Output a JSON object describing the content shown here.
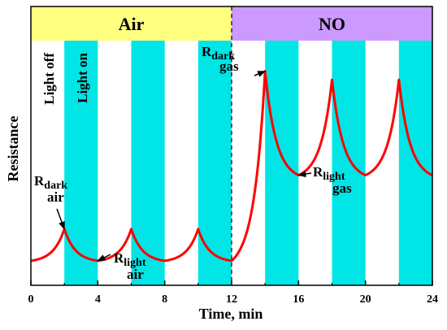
{
  "chart_data": {
    "type": "line",
    "title": "",
    "xlabel": "Time, min",
    "ylabel": "Resistance",
    "xlim": [
      0,
      24
    ],
    "ylim": [
      0,
      1
    ],
    "x_ticks": [
      0,
      4,
      8,
      12,
      16,
      20,
      24
    ],
    "x_tick_labels": [
      "0",
      "4",
      "8",
      "12",
      "16",
      "20",
      "24"
    ],
    "y_ticks_shown": false,
    "grid": false,
    "legend": null,
    "regions": [
      {
        "label": "Air",
        "x_start": 0,
        "x_end": 12,
        "color": "#ffff80"
      },
      {
        "label": "NO",
        "x_start": 12,
        "x_end": 24,
        "color": "#cc99ff"
      }
    ],
    "light_on_intervals": [
      [
        2,
        4
      ],
      [
        6,
        8
      ],
      [
        10,
        12
      ],
      [
        14,
        16
      ],
      [
        18,
        20
      ],
      [
        22,
        24
      ]
    ],
    "light_on_color": "#00e5e5",
    "boundary_x": 12,
    "phase_labels": {
      "light_off": "Light off",
      "light_on": "Light on"
    },
    "series": [
      {
        "color": "#ff0000",
        "x": [
          0,
          2,
          4,
          6,
          8,
          10,
          12,
          14,
          16,
          18,
          20,
          22,
          24
        ],
        "values": [
          0.1,
          0.23,
          0.1,
          0.23,
          0.1,
          0.23,
          0.1,
          0.875,
          0.45,
          0.84,
          0.45,
          0.84,
          0.45
        ],
        "segment_types": [
          "rise",
          "fall",
          "rise",
          "fall",
          "rise",
          "fall",
          "rise",
          "fall",
          "rise",
          "fall",
          "rise",
          "fall"
        ]
      }
    ],
    "annotations": [
      {
        "main": "R",
        "sub": "dark",
        "sub2": "air",
        "x": 2,
        "y": 0.23
      },
      {
        "main": "R",
        "sub": "light",
        "sub2": "air",
        "x": 4,
        "y": 0.1
      },
      {
        "main": "R",
        "sub": "dark",
        "sub2": "gas",
        "x": 14,
        "y": 0.875
      },
      {
        "main": "R",
        "sub": "light",
        "sub2": "gas",
        "x": 16,
        "y": 0.45
      }
    ]
  }
}
